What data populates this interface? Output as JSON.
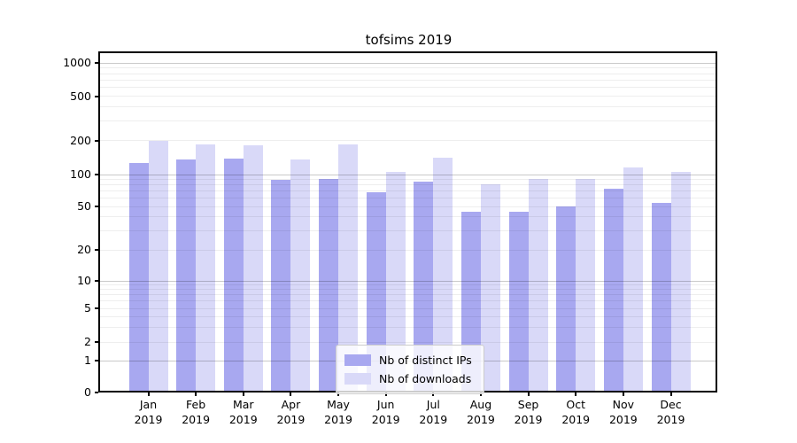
{
  "chart_data": {
    "type": "bar",
    "title": "tofsims 2019",
    "categories": [
      "Jan",
      "Feb",
      "Mar",
      "Apr",
      "May",
      "Jun",
      "Jul",
      "Aug",
      "Sep",
      "Oct",
      "Nov",
      "Dec"
    ],
    "category_year": "2019",
    "series": [
      {
        "name": "Nb of distinct IPs",
        "color": "#a8a8f0",
        "values": [
          127,
          136,
          139,
          89,
          91,
          68,
          85,
          45,
          45,
          50,
          73,
          54
        ]
      },
      {
        "name": "Nb of downloads",
        "color": "#d9d9f8",
        "values": [
          198,
          186,
          180,
          135,
          186,
          106,
          142,
          81,
          91,
          91,
          115,
          105
        ]
      }
    ],
    "yscale": "symlog",
    "yticks": [
      0,
      1,
      2,
      5,
      10,
      20,
      50,
      100,
      200,
      500,
      1000
    ],
    "ylim": [
      0,
      1230
    ],
    "grid": true,
    "legend_position": "lower center"
  }
}
